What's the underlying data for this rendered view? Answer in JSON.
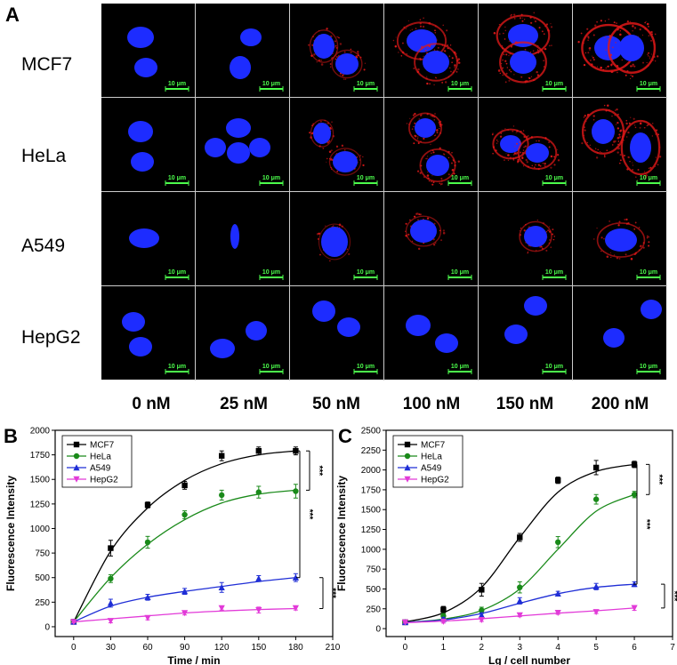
{
  "panel_a": {
    "label": "A",
    "rows": [
      "MCF7",
      "HeLa",
      "A549",
      "HepG2"
    ],
    "columns": [
      "0 nM",
      "25 nM",
      "50 nM",
      "100 nM",
      "150 nM",
      "200 nM"
    ],
    "scale_bar": "10 μm",
    "membrane_signal_level": [
      [
        0,
        0,
        0.35,
        0.7,
        0.85,
        1.0
      ],
      [
        0,
        0,
        0.3,
        0.6,
        0.75,
        0.9
      ],
      [
        0,
        0,
        0.2,
        0.35,
        0.45,
        0.55
      ],
      [
        0,
        0,
        0,
        0,
        0,
        0
      ]
    ]
  },
  "colors": {
    "MCF7": "#000000",
    "HeLa": "#1a8a1a",
    "A549": "#1f2ed6",
    "HepG2": "#e23ad8",
    "nucleus": "#1d2cff",
    "membrane": "#e01818",
    "scale": "#4cff4c"
  },
  "chart_data": [
    {
      "type": "line",
      "panel_label": "B",
      "xlabel": "Time / min",
      "ylabel": "Fluorescence Intensity",
      "xlim": [
        -15,
        210
      ],
      "ylim": [
        -100,
        2000
      ],
      "xticks": [
        0,
        30,
        60,
        90,
        120,
        150,
        180,
        210
      ],
      "yticks": [
        0,
        250,
        500,
        750,
        1000,
        1250,
        1500,
        1750,
        2000
      ],
      "legend_position": "top-left",
      "series": [
        {
          "name": "MCF7",
          "marker": "square",
          "x": [
            0,
            30,
            60,
            90,
            120,
            150,
            180
          ],
          "y": [
            50,
            800,
            1240,
            1440,
            1740,
            1790,
            1790
          ],
          "err": [
            10,
            80,
            30,
            40,
            50,
            40,
            40
          ],
          "fit": [
            50,
            770,
            1210,
            1490,
            1660,
            1750,
            1790
          ]
        },
        {
          "name": "HeLa",
          "marker": "circle",
          "x": [
            0,
            30,
            60,
            90,
            120,
            150,
            180
          ],
          "y": [
            50,
            490,
            860,
            1140,
            1340,
            1370,
            1380
          ],
          "err": [
            10,
            40,
            60,
            40,
            50,
            60,
            70
          ],
          "fit": [
            50,
            500,
            840,
            1090,
            1260,
            1350,
            1390
          ]
        },
        {
          "name": "A549",
          "marker": "triangle-up",
          "x": [
            0,
            30,
            60,
            90,
            120,
            150,
            180
          ],
          "y": [
            50,
            240,
            300,
            360,
            400,
            490,
            500
          ],
          "err": [
            10,
            40,
            30,
            30,
            50,
            30,
            40
          ],
          "fit": [
            50,
            210,
            300,
            360,
            410,
            460,
            500
          ]
        },
        {
          "name": "HepG2",
          "marker": "triangle-down",
          "x": [
            0,
            30,
            60,
            90,
            120,
            150,
            180
          ],
          "y": [
            50,
            60,
            90,
            140,
            190,
            170,
            190
          ],
          "err": [
            10,
            20,
            20,
            20,
            20,
            30,
            20
          ],
          "fit": [
            50,
            80,
            110,
            140,
            160,
            175,
            185
          ]
        }
      ],
      "significance": [
        {
          "label": "***",
          "from": "MCF7",
          "to": "A549"
        },
        {
          "label": "***",
          "from": "MCF7",
          "to": "HeLa"
        },
        {
          "label": "***",
          "from": "A549",
          "to": "HepG2"
        }
      ]
    },
    {
      "type": "line",
      "panel_label": "C",
      "xlabel": "Lg / cell number",
      "ylabel": "Fluorescence Intensity",
      "xlim": [
        -0.5,
        7
      ],
      "ylim": [
        -100,
        2500
      ],
      "xticks": [
        0,
        1,
        2,
        3,
        4,
        5,
        6,
        7
      ],
      "yticks": [
        0,
        250,
        500,
        750,
        1000,
        1250,
        1500,
        1750,
        2000,
        2250,
        2500
      ],
      "legend_position": "top-left",
      "series": [
        {
          "name": "MCF7",
          "marker": "square",
          "x": [
            0,
            1,
            2,
            3,
            4,
            5,
            6
          ],
          "y": [
            80,
            240,
            490,
            1150,
            1870,
            2030,
            2070
          ],
          "err": [
            10,
            40,
            80,
            50,
            40,
            90,
            40
          ],
          "fit": [
            85,
            200,
            520,
            1150,
            1720,
            1980,
            2070
          ]
        },
        {
          "name": "HeLa",
          "marker": "circle",
          "x": [
            0,
            1,
            2,
            3,
            4,
            5,
            6
          ],
          "y": [
            80,
            160,
            230,
            520,
            1090,
            1630,
            1690
          ],
          "err": [
            10,
            30,
            40,
            70,
            70,
            60,
            40
          ],
          "fit": [
            80,
            120,
            230,
            500,
            1000,
            1480,
            1690
          ]
        },
        {
          "name": "A549",
          "marker": "triangle-up",
          "x": [
            0,
            1,
            2,
            3,
            4,
            5,
            6
          ],
          "y": [
            80,
            120,
            170,
            350,
            440,
            530,
            560
          ],
          "err": [
            10,
            20,
            30,
            40,
            30,
            40,
            30
          ],
          "fit": [
            80,
            110,
            190,
            320,
            440,
            520,
            560
          ]
        },
        {
          "name": "HepG2",
          "marker": "triangle-down",
          "x": [
            0,
            1,
            2,
            3,
            4,
            5,
            6
          ],
          "y": [
            80,
            90,
            110,
            170,
            200,
            210,
            260
          ],
          "err": [
            10,
            20,
            20,
            20,
            20,
            20,
            30
          ],
          "fit": [
            75,
            95,
            125,
            160,
            195,
            225,
            260
          ]
        }
      ],
      "significance": [
        {
          "label": "***",
          "from": "MCF7",
          "to": "A549"
        },
        {
          "label": "***",
          "from": "MCF7",
          "to": "HeLa"
        },
        {
          "label": "***",
          "from": "A549",
          "to": "HepG2"
        }
      ]
    }
  ]
}
